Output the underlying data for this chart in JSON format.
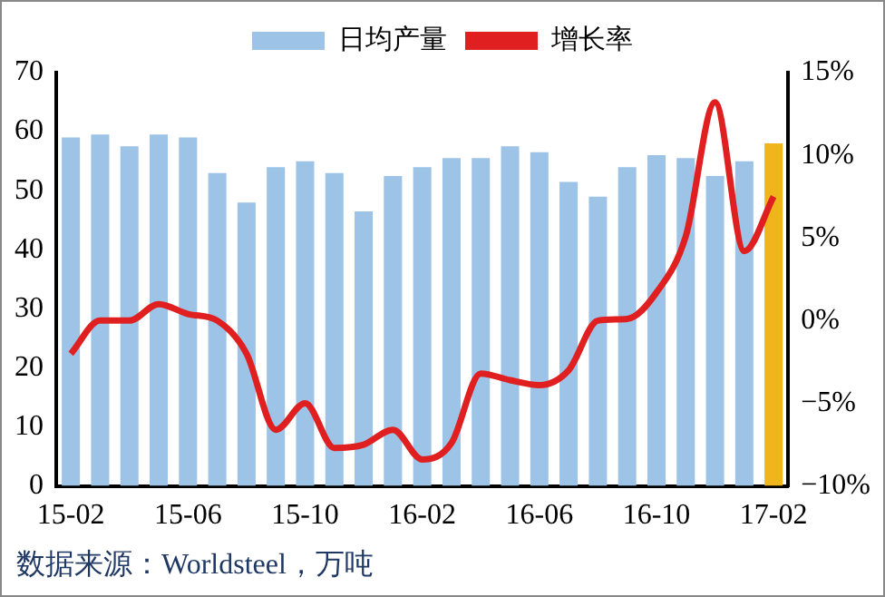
{
  "chart_data": {
    "type": "bar",
    "categories": [
      "15-02",
      null,
      null,
      null,
      "15-06",
      null,
      null,
      null,
      "15-10",
      null,
      null,
      null,
      "16-02",
      null,
      null,
      null,
      "16-06",
      null,
      null,
      null,
      "16-10",
      null,
      null,
      null,
      "17-02"
    ],
    "series": [
      {
        "name": "日均产量",
        "color": "#9dc3e6",
        "colors": [
          "#9dc3e6",
          "#9dc3e6",
          "#9dc3e6",
          "#9dc3e6",
          "#9dc3e6",
          "#9dc3e6",
          "#9dc3e6",
          "#9dc3e6",
          "#9dc3e6",
          "#9dc3e6",
          "#9dc3e6",
          "#9dc3e6",
          "#9dc3e6",
          "#9dc3e6",
          "#9dc3e6",
          "#9dc3e6",
          "#9dc3e6",
          "#9dc3e6",
          "#9dc3e6",
          "#9dc3e6",
          "#9dc3e6",
          "#9dc3e6",
          "#9dc3e6",
          "#9dc3e6",
          "#f0b41c"
        ],
        "values": [
          59,
          59.5,
          57.5,
          59.5,
          59,
          53,
          48,
          54,
          55,
          53,
          46.5,
          52.5,
          54,
          55.5,
          55.5,
          57.5,
          56.5,
          51.5,
          49,
          54,
          56,
          55.5,
          52.5,
          55,
          58
        ]
      },
      {
        "name": "增长率",
        "type": "line",
        "axis": "y2",
        "color": "#e02020",
        "values": [
          -2,
          0,
          0,
          1,
          0.4,
          0,
          -2,
          -6.6,
          -5,
          -7.7,
          -7.5,
          -6.6,
          -8.4,
          -7.4,
          -3.2,
          -3.6,
          -3.9,
          -3,
          0,
          0.1,
          1.7,
          5.1,
          13.2,
          4.2,
          7.5
        ]
      }
    ],
    "ylim": [
      0,
      70
    ],
    "yticks": [
      0,
      10,
      20,
      30,
      40,
      50,
      60,
      70
    ],
    "y2lim": [
      -10,
      15
    ],
    "y2ticks": [
      {
        "value": -10,
        "label": "−10%"
      },
      {
        "value": -5,
        "label": "−5%"
      },
      {
        "value": 0,
        "label": "0%"
      },
      {
        "value": 5,
        "label": "5%"
      },
      {
        "value": 10,
        "label": "10%"
      },
      {
        "value": 15,
        "label": "15%"
      }
    ],
    "grid": false,
    "legend": "top",
    "marker": "none",
    "line_style": "solid",
    "annotations": [
      "数据来源：Worldsteel，万吨"
    ]
  }
}
